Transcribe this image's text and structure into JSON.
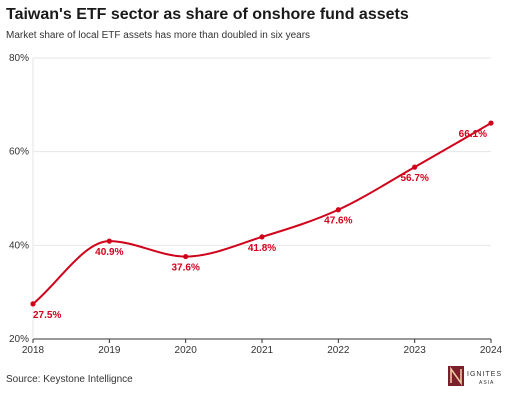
{
  "title": "Taiwan's ETF sector as share of onshore fund assets",
  "subtitle": "Market share of local ETF assets has more than doubled in six years",
  "source": "Source: Keystone Intellignce",
  "logo": {
    "text": "IGNITES",
    "subtext": "ASIA"
  },
  "colors": {
    "line": "#d0021b",
    "grid": "#e6e6e6",
    "axis": "#333333",
    "text": "#333333"
  },
  "chart_data": {
    "type": "line",
    "title": "Taiwan's ETF sector as share of onshore fund assets",
    "xlabel": "",
    "ylabel": "",
    "x": [
      "2018",
      "2019",
      "2020",
      "2021",
      "2022",
      "2023",
      "2024"
    ],
    "series": [
      {
        "values": [
          27.5,
          40.9,
          37.6,
          41.8,
          47.6,
          56.7,
          66.1
        ]
      }
    ],
    "labels": [
      "27.5%",
      "40.9%",
      "37.6%",
      "41.8%",
      "47.6%",
      "56.7%",
      "66.1%"
    ],
    "ylim": [
      20,
      80
    ],
    "yticks": [
      "20%",
      "40%",
      "60%",
      "80%"
    ],
    "grid": true,
    "smooth": true
  }
}
